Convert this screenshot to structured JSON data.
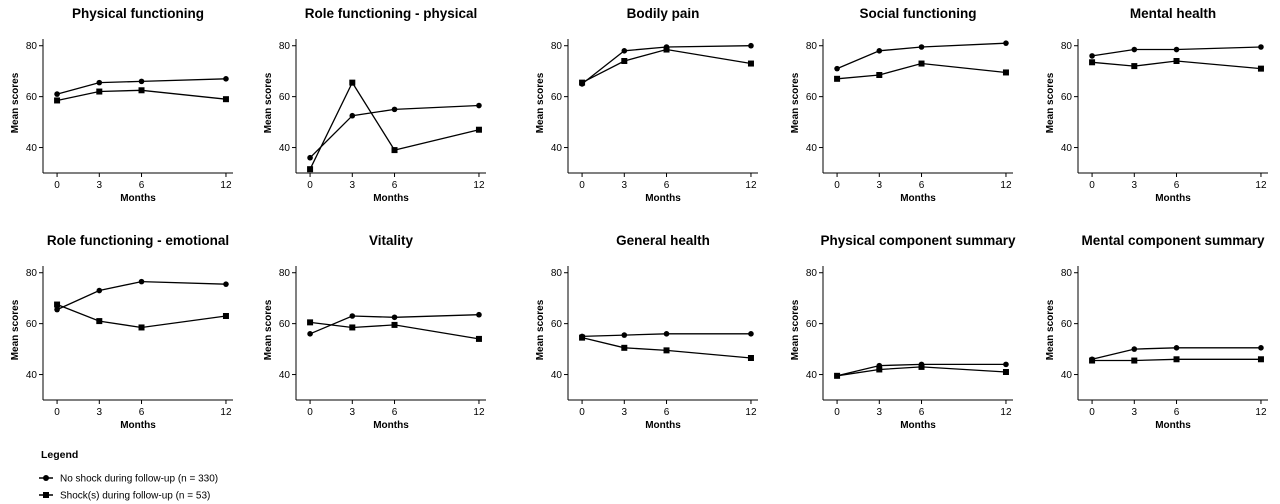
{
  "legend": {
    "title": "Legend",
    "entries": [
      {
        "label": "No shock during follow-up (n = 330)",
        "marker": "circle"
      },
      {
        "label": "Shock(s) during follow-up (n = 53)",
        "marker": "square"
      }
    ]
  },
  "chart_data": [
    {
      "type": "line",
      "title": "Physical functioning",
      "xlabel": "Months",
      "ylabel": "Mean scores",
      "x": [
        0,
        3,
        6,
        12
      ],
      "xlim": [
        -1,
        12.5
      ],
      "ylim": [
        30,
        85
      ],
      "yticks": [
        40,
        60,
        80
      ],
      "series": [
        {
          "marker": "circle",
          "values": [
            61,
            65.5,
            66,
            67
          ]
        },
        {
          "marker": "square",
          "values": [
            58.5,
            62,
            62.5,
            59
          ]
        }
      ]
    },
    {
      "type": "line",
      "title": "Role functioning - physical",
      "xlabel": "Months",
      "ylabel": "Mean scores",
      "x": [
        0,
        3,
        6,
        12
      ],
      "xlim": [
        -1,
        12.5
      ],
      "ylim": [
        30,
        85
      ],
      "yticks": [
        40,
        60,
        80
      ],
      "series": [
        {
          "marker": "circle",
          "values": [
            36,
            52.5,
            55,
            56.5
          ]
        },
        {
          "marker": "square",
          "values": [
            31.5,
            65.5,
            39,
            47
          ]
        }
      ]
    },
    {
      "type": "line",
      "title": "Bodily pain",
      "xlabel": "Months",
      "ylabel": "Mean scores",
      "x": [
        0,
        3,
        6,
        12
      ],
      "xlim": [
        -1,
        12.5
      ],
      "ylim": [
        30,
        85
      ],
      "yticks": [
        40,
        60,
        80
      ],
      "series": [
        {
          "marker": "circle",
          "values": [
            65,
            78,
            79.5,
            80
          ]
        },
        {
          "marker": "square",
          "values": [
            65.5,
            74,
            78.5,
            73
          ]
        }
      ]
    },
    {
      "type": "line",
      "title": "Social functioning",
      "xlabel": "Months",
      "ylabel": "Mean scores",
      "x": [
        0,
        3,
        6,
        12
      ],
      "xlim": [
        -1,
        12.5
      ],
      "ylim": [
        30,
        85
      ],
      "yticks": [
        40,
        60,
        80
      ],
      "series": [
        {
          "marker": "circle",
          "values": [
            71,
            78,
            79.5,
            81
          ]
        },
        {
          "marker": "square",
          "values": [
            67,
            68.5,
            73,
            69.5
          ]
        }
      ]
    },
    {
      "type": "line",
      "title": "Mental health",
      "xlabel": "Months",
      "ylabel": "Mean scores",
      "x": [
        0,
        3,
        6,
        12
      ],
      "xlim": [
        -1,
        12.5
      ],
      "ylim": [
        30,
        85
      ],
      "yticks": [
        40,
        60,
        80
      ],
      "series": [
        {
          "marker": "circle",
          "values": [
            76,
            78.5,
            78.5,
            79.5
          ]
        },
        {
          "marker": "square",
          "values": [
            73.5,
            72,
            74,
            71
          ]
        }
      ]
    },
    {
      "type": "line",
      "title": "Role functioning - emotional",
      "xlabel": "Months",
      "ylabel": "Mean scores",
      "x": [
        0,
        3,
        6,
        12
      ],
      "xlim": [
        -1,
        12.5
      ],
      "ylim": [
        30,
        85
      ],
      "yticks": [
        40,
        60,
        80
      ],
      "series": [
        {
          "marker": "circle",
          "values": [
            65.5,
            73,
            76.5,
            75.5
          ]
        },
        {
          "marker": "square",
          "values": [
            67.5,
            61,
            58.5,
            63
          ]
        }
      ]
    },
    {
      "type": "line",
      "title": "Vitality",
      "xlabel": "Months",
      "ylabel": "Mean scores",
      "x": [
        0,
        3,
        6,
        12
      ],
      "xlim": [
        -1,
        12.5
      ],
      "ylim": [
        30,
        85
      ],
      "yticks": [
        40,
        60,
        80
      ],
      "series": [
        {
          "marker": "circle",
          "values": [
            56,
            63,
            62.5,
            63.5
          ]
        },
        {
          "marker": "square",
          "values": [
            60.5,
            58.5,
            59.5,
            54
          ]
        }
      ]
    },
    {
      "type": "line",
      "title": "General health",
      "xlabel": "Months",
      "ylabel": "Mean scores",
      "x": [
        0,
        3,
        6,
        12
      ],
      "xlim": [
        -1,
        12.5
      ],
      "ylim": [
        30,
        85
      ],
      "yticks": [
        40,
        60,
        80
      ],
      "series": [
        {
          "marker": "circle",
          "values": [
            55,
            55.5,
            56,
            56
          ]
        },
        {
          "marker": "square",
          "values": [
            54.5,
            50.5,
            49.5,
            46.5
          ]
        }
      ]
    },
    {
      "type": "line",
      "title": "Physical component summary",
      "xlabel": "Months",
      "ylabel": "Mean scores",
      "x": [
        0,
        3,
        6,
        12
      ],
      "xlim": [
        -1,
        12.5
      ],
      "ylim": [
        30,
        85
      ],
      "yticks": [
        40,
        60,
        80
      ],
      "series": [
        {
          "marker": "circle",
          "values": [
            39.5,
            43.5,
            44,
            44
          ]
        },
        {
          "marker": "square",
          "values": [
            39.5,
            42,
            43,
            41
          ]
        }
      ]
    },
    {
      "type": "line",
      "title": "Mental component summary",
      "xlabel": "Months",
      "ylabel": "Mean scores",
      "x": [
        0,
        3,
        6,
        12
      ],
      "xlim": [
        -1,
        12.5
      ],
      "ylim": [
        30,
        85
      ],
      "yticks": [
        40,
        60,
        80
      ],
      "series": [
        {
          "marker": "circle",
          "values": [
            46,
            50,
            50.5,
            50.5
          ]
        },
        {
          "marker": "square",
          "values": [
            45.5,
            45.5,
            46,
            46
          ]
        }
      ]
    }
  ]
}
